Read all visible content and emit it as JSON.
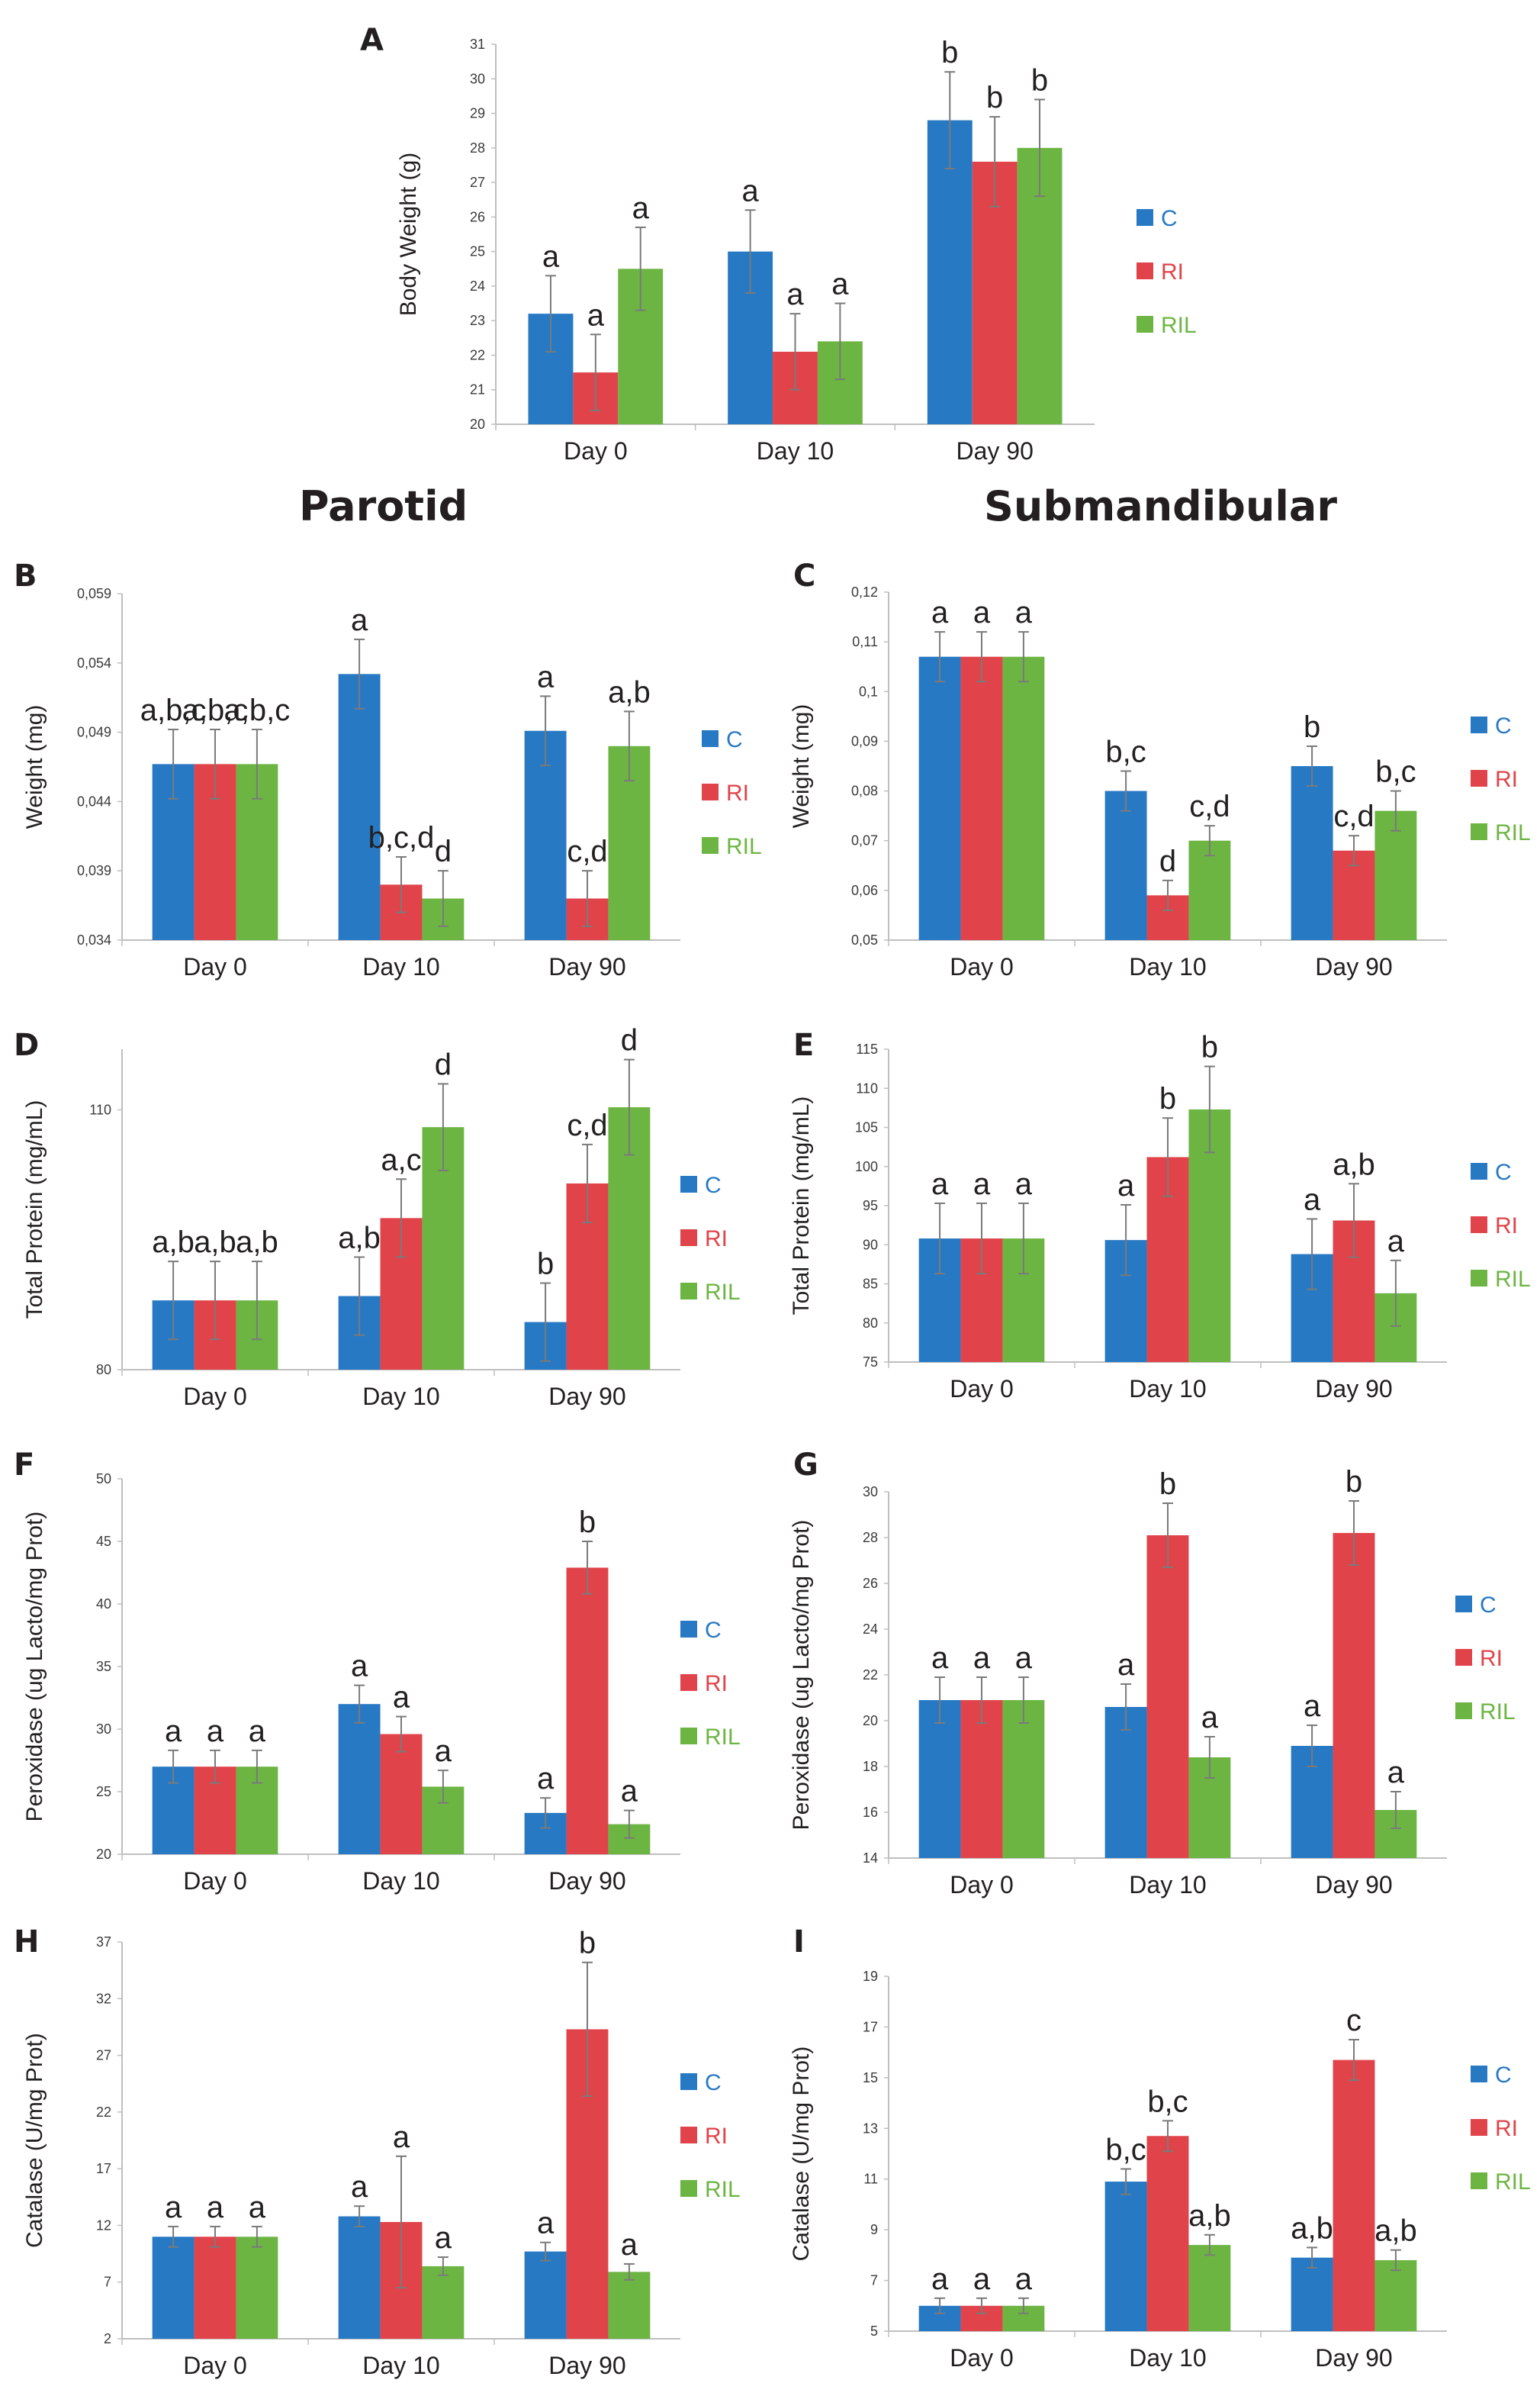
{
  "headings": {
    "parotid": "Parotid",
    "submandibular": "Submandibular"
  },
  "colors": {
    "C": "#2779c4",
    "RI": "#e0434a",
    "RIL": "#6db543",
    "axis": "#bfbfbf",
    "grid": "#e4e4e4",
    "text": "#231f20",
    "error": "#7a7a7a"
  },
  "chart_data": [
    {
      "id": "A",
      "type": "bar",
      "title": "",
      "ylabel": "Body Weight (g)",
      "categories": [
        "Day 0",
        "Day 10",
        "Day 90"
      ],
      "yticks": [
        "20",
        "21",
        "22",
        "23",
        "24",
        "25",
        "26",
        "27",
        "28",
        "29",
        "30",
        "31"
      ],
      "ylim": [
        20,
        31
      ],
      "grid": false,
      "legend": "right",
      "series": [
        {
          "name": "C",
          "values": [
            23.2,
            25.0,
            28.8
          ],
          "errors": [
            1.1,
            1.2,
            1.4
          ],
          "labels": [
            "a",
            "a",
            "b"
          ]
        },
        {
          "name": "RI",
          "values": [
            21.5,
            22.1,
            27.6
          ],
          "errors": [
            1.1,
            1.1,
            1.3
          ],
          "labels": [
            "a",
            "a",
            "b"
          ]
        },
        {
          "name": "RIL",
          "values": [
            24.5,
            22.4,
            28.0
          ],
          "errors": [
            1.2,
            1.1,
            1.4
          ],
          "labels": [
            "a",
            "a",
            "b"
          ]
        }
      ]
    },
    {
      "id": "B",
      "type": "bar",
      "title": "",
      "ylabel": "Weight (mg)",
      "categories": [
        "Day 0",
        "Day 10",
        "Day 90"
      ],
      "yticks": [
        "0,034",
        "0,039",
        "0,044",
        "0,049",
        "0,054",
        "0,059"
      ],
      "ylim": [
        0.034,
        0.059
      ],
      "grid": false,
      "legend": "right",
      "series": [
        {
          "name": "C",
          "values": [
            0.0467,
            0.0532,
            0.0491
          ],
          "errors": [
            0.0025,
            0.0025,
            0.0025
          ],
          "labels": [
            "a,b,c",
            "a",
            "a"
          ]
        },
        {
          "name": "RI",
          "values": [
            0.0467,
            0.038,
            0.037
          ],
          "errors": [
            0.0025,
            0.002,
            0.002
          ],
          "labels": [
            "a,b,c",
            "b,c,d",
            "c,d"
          ]
        },
        {
          "name": "RIL",
          "values": [
            0.0467,
            0.037,
            0.048
          ],
          "errors": [
            0.0025,
            0.002,
            0.0025
          ],
          "labels": [
            "a,b,c",
            "d",
            "a,b"
          ]
        }
      ]
    },
    {
      "id": "C",
      "type": "bar",
      "title": "",
      "ylabel": "Weight (mg)",
      "categories": [
        "Day 0",
        "Day 10",
        "Day 90"
      ],
      "yticks": [
        "0,05",
        "0,06",
        "0,07",
        "0,08",
        "0,09",
        "0,1",
        "0,11",
        "0,12"
      ],
      "ylim": [
        0.05,
        0.12
      ],
      "grid": false,
      "legend": "right",
      "series": [
        {
          "name": "C",
          "values": [
            0.107,
            0.08,
            0.085
          ],
          "errors": [
            0.005,
            0.004,
            0.004
          ],
          "labels": [
            "a",
            "b,c",
            "b"
          ]
        },
        {
          "name": "RI",
          "values": [
            0.107,
            0.059,
            0.068
          ],
          "errors": [
            0.005,
            0.003,
            0.003
          ],
          "labels": [
            "a",
            "d",
            "c,d"
          ]
        },
        {
          "name": "RIL",
          "values": [
            0.107,
            0.07,
            0.076
          ],
          "errors": [
            0.005,
            0.003,
            0.004
          ],
          "labels": [
            "a",
            "c,d",
            "b,c"
          ]
        }
      ]
    },
    {
      "id": "D",
      "type": "bar",
      "title": "",
      "ylabel": "Total Protein (mg/mL)",
      "categories": [
        "Day 0",
        "Day 10",
        "Day 90"
      ],
      "yticks": [
        "80",
        "110"
      ],
      "ylim": [
        80,
        117
      ],
      "grid": false,
      "legend": "right",
      "series": [
        {
          "name": "C",
          "values": [
            88.0,
            88.5,
            85.5
          ],
          "errors": [
            4.5,
            4.5,
            4.5
          ],
          "labels": [
            "a,b",
            "a,b",
            "b"
          ]
        },
        {
          "name": "RI",
          "values": [
            88.0,
            97.5,
            101.5
          ],
          "errors": [
            4.5,
            4.5,
            4.5
          ],
          "labels": [
            "a,b",
            "a,c",
            "c,d"
          ]
        },
        {
          "name": "RIL",
          "values": [
            88.0,
            108.0,
            110.3
          ],
          "errors": [
            4.5,
            5.0,
            5.5
          ],
          "labels": [
            "a,b",
            "d",
            "d"
          ]
        }
      ]
    },
    {
      "id": "E",
      "type": "bar",
      "title": "",
      "ylabel": "Total Protein (mg/mL)",
      "categories": [
        "Day 0",
        "Day 10",
        "Day 90"
      ],
      "yticks": [
        "75",
        "80",
        "85",
        "90",
        "95",
        "100",
        "105",
        "110",
        "115"
      ],
      "ylim": [
        75,
        115
      ],
      "grid": false,
      "legend": "right",
      "series": [
        {
          "name": "C",
          "values": [
            90.8,
            90.6,
            88.8
          ],
          "errors": [
            4.5,
            4.5,
            4.5
          ],
          "labels": [
            "a",
            "a",
            "a"
          ]
        },
        {
          "name": "RI",
          "values": [
            90.8,
            101.2,
            93.1
          ],
          "errors": [
            4.5,
            5.0,
            4.7
          ],
          "labels": [
            "a",
            "b",
            "a,b"
          ]
        },
        {
          "name": "RIL",
          "values": [
            90.8,
            107.3,
            83.8
          ],
          "errors": [
            4.5,
            5.5,
            4.2
          ],
          "labels": [
            "a",
            "b",
            "a"
          ]
        }
      ]
    },
    {
      "id": "F",
      "type": "bar",
      "title": "",
      "ylabel": "Peroxidase (ug Lacto/mg Prot)",
      "categories": [
        "Day 0",
        "Day 10",
        "Day 90"
      ],
      "yticks": [
        "20",
        "25",
        "30",
        "35",
        "40",
        "45",
        "50"
      ],
      "ylim": [
        20,
        50
      ],
      "grid": false,
      "legend": "right",
      "series": [
        {
          "name": "C",
          "values": [
            27.0,
            32.0,
            23.3
          ],
          "errors": [
            1.3,
            1.5,
            1.2
          ],
          "labels": [
            "a",
            "a",
            "a"
          ]
        },
        {
          "name": "RI",
          "values": [
            27.0,
            29.6,
            42.9
          ],
          "errors": [
            1.3,
            1.4,
            2.1
          ],
          "labels": [
            "a",
            "a",
            "b"
          ]
        },
        {
          "name": "RIL",
          "values": [
            27.0,
            25.4,
            22.4
          ],
          "errors": [
            1.3,
            1.3,
            1.1
          ],
          "labels": [
            "a",
            "a",
            "a"
          ]
        }
      ]
    },
    {
      "id": "G",
      "type": "bar",
      "title": "",
      "ylabel": "Peroxidase (ug Lacto/mg Prot)",
      "categories": [
        "Day 0",
        "Day 10",
        "Day 90"
      ],
      "yticks": [
        "14",
        "16",
        "18",
        "20",
        "22",
        "24",
        "26",
        "28",
        "30"
      ],
      "ylim": [
        14,
        30
      ],
      "grid": false,
      "legend": "right",
      "series": [
        {
          "name": "C",
          "values": [
            20.9,
            20.6,
            18.9
          ],
          "errors": [
            1.0,
            1.0,
            0.9
          ],
          "labels": [
            "a",
            "a",
            "a"
          ]
        },
        {
          "name": "RI",
          "values": [
            20.9,
            28.1,
            28.2
          ],
          "errors": [
            1.0,
            1.4,
            1.4
          ],
          "labels": [
            "a",
            "b",
            "b"
          ]
        },
        {
          "name": "RIL",
          "values": [
            20.9,
            18.4,
            16.1
          ],
          "errors": [
            1.0,
            0.9,
            0.8
          ],
          "labels": [
            "a",
            "a",
            "a"
          ]
        }
      ]
    },
    {
      "id": "H",
      "type": "bar",
      "title": "",
      "ylabel": "Catalase (U/mg Prot)",
      "categories": [
        "Day 0",
        "Day 10",
        "Day 90"
      ],
      "yticks": [
        "2",
        "7",
        "12",
        "17",
        "22",
        "27",
        "32",
        "37"
      ],
      "ylim": [
        2,
        37
      ],
      "grid": false,
      "legend": "right",
      "series": [
        {
          "name": "C",
          "values": [
            11.0,
            12.8,
            9.7
          ],
          "errors": [
            0.9,
            0.9,
            0.8
          ],
          "labels": [
            "a",
            "a",
            "a"
          ]
        },
        {
          "name": "RI",
          "values": [
            11.0,
            12.3,
            29.3
          ],
          "errors": [
            0.9,
            5.8,
            5.9
          ],
          "labels": [
            "a",
            "a",
            "b"
          ]
        },
        {
          "name": "RIL",
          "values": [
            11.0,
            8.4,
            7.9
          ],
          "errors": [
            0.9,
            0.8,
            0.7
          ],
          "labels": [
            "a",
            "a",
            "a"
          ]
        }
      ]
    },
    {
      "id": "I",
      "type": "bar",
      "title": "",
      "ylabel": "Catalase (U/mg Prot)",
      "categories": [
        "Day 0",
        "Day 10",
        "Day 90"
      ],
      "yticks": [
        "5",
        "7",
        "9",
        "11",
        "13",
        "15",
        "17",
        "19"
      ],
      "ylim": [
        5,
        19
      ],
      "grid": false,
      "legend": "right",
      "series": [
        {
          "name": "C",
          "values": [
            6.0,
            10.9,
            7.9
          ],
          "errors": [
            0.3,
            0.5,
            0.4
          ],
          "labels": [
            "a",
            "b,c",
            "a,b"
          ]
        },
        {
          "name": "RI",
          "values": [
            6.0,
            12.7,
            15.7
          ],
          "errors": [
            0.3,
            0.6,
            0.8
          ],
          "labels": [
            "a",
            "b,c",
            "c"
          ]
        },
        {
          "name": "RIL",
          "values": [
            6.0,
            8.4,
            7.8
          ],
          "errors": [
            0.3,
            0.4,
            0.4
          ],
          "labels": [
            "a",
            "a,b",
            "a,b"
          ]
        }
      ]
    }
  ]
}
